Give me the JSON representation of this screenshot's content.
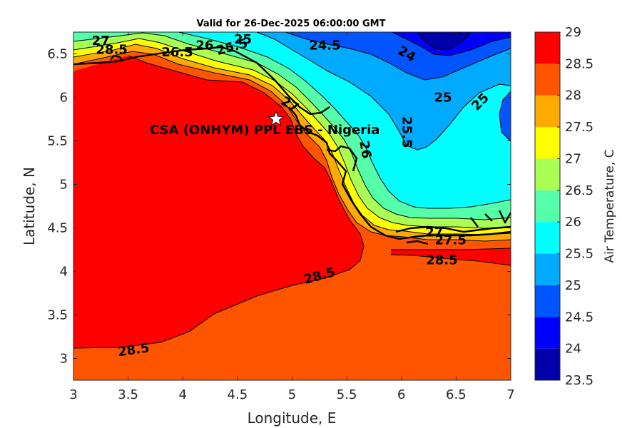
{
  "chart_data": {
    "type": "contour-map",
    "title": "Valid for 26-Dec-2025 06:00:00 GMT",
    "xlabel": "Longitude, E",
    "ylabel": "Latitude, N",
    "xlim": [
      3,
      7
    ],
    "ylim": [
      2.75,
      6.75
    ],
    "xticks": [
      "3",
      "3.5",
      "4",
      "4.5",
      "5",
      "5.5",
      "6",
      "6.5",
      "7"
    ],
    "yticks": [
      "3",
      "3.5",
      "4",
      "4.5",
      "5",
      "5.5",
      "6",
      "6.5"
    ],
    "colorbar": {
      "label": "Air Temperature, C",
      "ticks": [
        "23.5",
        "24",
        "24.5",
        "25",
        "25.5",
        "26",
        "26.5",
        "27",
        "27.5",
        "28",
        "28.5",
        "29"
      ],
      "levels": [
        23.5,
        24,
        24.5,
        25,
        25.5,
        26,
        26.5,
        27,
        27.5,
        28,
        28.5,
        29
      ],
      "colors": [
        "#0000aa",
        "#0000ff",
        "#0055ff",
        "#00aaff",
        "#00ffff",
        "#55ffaa",
        "#aaff55",
        "#ffff00",
        "#ffaa00",
        "#ff5500",
        "#ff0000",
        "#aa0000"
      ]
    },
    "station": {
      "name": "CSA (ONHYM) PPL EBS - Nigeria",
      "lon": 4.87,
      "lat": 5.75
    },
    "contour_labels": [
      {
        "text": "27",
        "lon": 3.25,
        "lat": 6.65,
        "angle": 0
      },
      {
        "text": "28.5",
        "lon": 3.35,
        "lat": 6.55,
        "angle": 0
      },
      {
        "text": "26.5",
        "lon": 3.95,
        "lat": 6.52,
        "angle": 0
      },
      {
        "text": "26",
        "lon": 4.2,
        "lat": 6.6,
        "angle": 0
      },
      {
        "text": "25.5",
        "lon": 4.45,
        "lat": 6.58,
        "angle": -15
      },
      {
        "text": "25",
        "lon": 4.55,
        "lat": 6.67,
        "angle": 0
      },
      {
        "text": "24.5",
        "lon": 5.3,
        "lat": 6.6,
        "angle": 0
      },
      {
        "text": "24",
        "lon": 6.05,
        "lat": 6.5,
        "angle": 30
      },
      {
        "text": "25",
        "lon": 6.38,
        "lat": 6.0,
        "angle": 0
      },
      {
        "text": "25",
        "lon": 6.72,
        "lat": 5.95,
        "angle": -45
      },
      {
        "text": "27",
        "lon": 4.98,
        "lat": 5.92,
        "angle": 30
      },
      {
        "text": "25.5",
        "lon": 6.05,
        "lat": 5.6,
        "angle": 90
      },
      {
        "text": "26",
        "lon": 5.67,
        "lat": 5.4,
        "angle": 80
      },
      {
        "text": "28.5",
        "lon": 5.25,
        "lat": 3.95,
        "angle": -15
      },
      {
        "text": "28.5",
        "lon": 3.55,
        "lat": 3.1,
        "angle": -8
      },
      {
        "text": "28.5",
        "lon": 6.37,
        "lat": 4.13,
        "angle": 0
      },
      {
        "text": "27",
        "lon": 6.3,
        "lat": 4.45,
        "angle": 0
      },
      {
        "text": "27.5",
        "lon": 6.45,
        "lat": 4.36,
        "angle": 0
      }
    ]
  }
}
